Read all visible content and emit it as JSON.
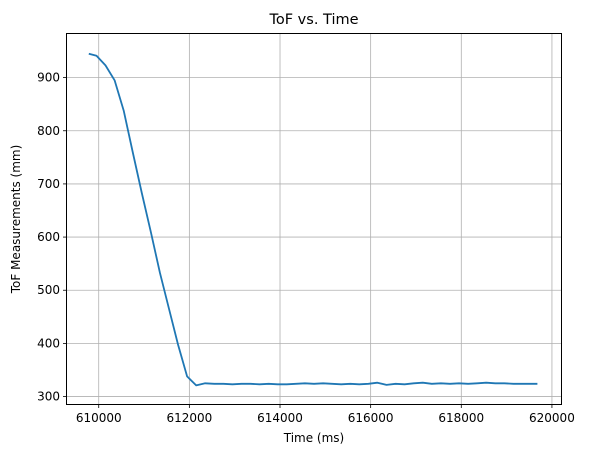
{
  "chart_data": {
    "type": "line",
    "title": "ToF vs. Time",
    "xlabel": "Time (ms)",
    "ylabel": "ToF Measurements (mm)",
    "xlim": [
      609300,
      620200
    ],
    "ylim": [
      286,
      982
    ],
    "xticks": [
      610000,
      612000,
      614000,
      616000,
      618000,
      620000
    ],
    "yticks": [
      300,
      400,
      500,
      600,
      700,
      800,
      900
    ],
    "grid": true,
    "line_color": "#1f77b4",
    "series": [
      {
        "x": [
          609780,
          609950,
          610150,
          610350,
          610550,
          610750,
          610950,
          611150,
          611350,
          611550,
          611750,
          611950,
          612150,
          612350,
          612550,
          612750,
          612950,
          613150,
          613350,
          613550,
          613750,
          613950,
          614150,
          614350,
          614550,
          614750,
          614950,
          615150,
          615350,
          615550,
          615750,
          615950,
          616150,
          616350,
          616550,
          616750,
          616950,
          617150,
          617350,
          617550,
          617750,
          617950,
          618150,
          618350,
          618550,
          618750,
          618950,
          619150,
          619350,
          619550,
          619680
        ],
        "y": [
          945,
          941,
          923,
          895,
          838,
          760,
          683,
          610,
          533,
          465,
          398,
          338,
          321,
          325,
          324,
          324,
          323,
          324,
          324,
          323,
          324,
          323,
          323,
          324,
          325,
          324,
          325,
          324,
          323,
          324,
          323,
          324,
          326,
          322,
          324,
          323,
          325,
          326,
          324,
          325,
          324,
          325,
          324,
          325,
          326,
          325,
          325,
          324,
          324,
          324,
          324
        ]
      }
    ]
  }
}
